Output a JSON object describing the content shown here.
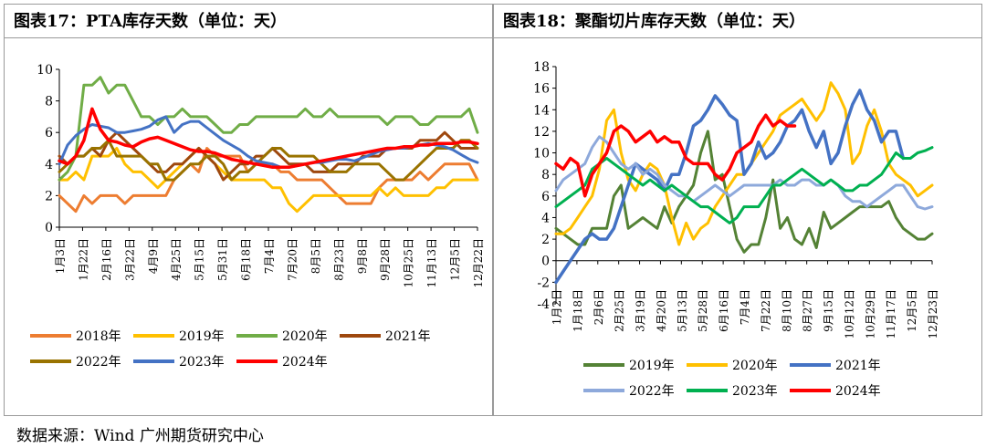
{
  "source": "数据来源：Wind 广州期货研究中心",
  "chart_data": [
    {
      "type": "line",
      "title": "图表17：PTA库存天数（单位：天）",
      "ylim": [
        0,
        10
      ],
      "yticks": [
        "0",
        "2",
        "4",
        "6",
        "8",
        "10"
      ],
      "xticks": [
        "1月3日",
        "1月22日",
        "2月16日",
        "3月22日",
        "4月9日",
        "4月25日",
        "5月15日",
        "5月31日",
        "6月18日",
        "7月4日",
        "7月20日",
        "8月5日",
        "8月23日",
        "9月8日",
        "9月28日",
        "10月25日",
        "11月13日",
        "12月5日",
        "12月22日"
      ],
      "n": 52,
      "legend_position": "bottom",
      "grid": false,
      "series": [
        {
          "name": "2018年",
          "color": "#ED7D31",
          "width": 3,
          "values": [
            2,
            1.5,
            1,
            2,
            1.5,
            2,
            2,
            2,
            1.5,
            2,
            2,
            2,
            2,
            2,
            3,
            3.5,
            4,
            3.5,
            5,
            4.5,
            4.5,
            4.5,
            4.5,
            3.5,
            4,
            4,
            4,
            3.5,
            3.5,
            3,
            3,
            3,
            3,
            2.5,
            2,
            1.5,
            1.5,
            1.5,
            1.5,
            2.5,
            3,
            3,
            3,
            3,
            3.5,
            3,
            3.5,
            4,
            4,
            4,
            4,
            3
          ]
        },
        {
          "name": "2019年",
          "color": "#FFC000",
          "width": 3,
          "values": [
            3,
            3,
            3.5,
            3,
            4.5,
            4.5,
            4.5,
            5,
            4,
            3.5,
            3.5,
            3,
            2.5,
            3,
            3.5,
            4,
            4.5,
            5,
            4.5,
            4,
            3.5,
            3,
            3,
            3,
            3,
            3,
            2.5,
            2.5,
            1.5,
            1,
            1.5,
            2,
            2,
            2,
            2,
            2,
            2,
            2,
            2,
            2.5,
            2,
            2.5,
            2,
            2,
            2,
            2,
            2.5,
            2.5,
            3,
            3,
            3,
            3
          ]
        },
        {
          "name": "2020年",
          "color": "#70AD47",
          "width": 3,
          "values": [
            3,
            3.5,
            4.5,
            9,
            9,
            9.5,
            8.5,
            9,
            9,
            8,
            7,
            7,
            6.5,
            7,
            7,
            7.5,
            7,
            7,
            7,
            6.5,
            6,
            6,
            6.5,
            6.5,
            7,
            7,
            7,
            7,
            7,
            7,
            7.5,
            7,
            7,
            7.5,
            7,
            7,
            7,
            7,
            7,
            7,
            6.5,
            7,
            7,
            7,
            6.5,
            6.5,
            7,
            7,
            7,
            7,
            7.5,
            6
          ]
        },
        {
          "name": "2021年",
          "color": "#9E480E",
          "width": 3,
          "values": [
            4.5,
            4,
            4.5,
            4.5,
            5,
            4.5,
            5.5,
            6,
            5.5,
            5,
            4.5,
            4,
            3.5,
            3.5,
            4,
            4,
            4.5,
            5,
            4.5,
            4,
            3,
            3.5,
            4,
            4,
            4.5,
            4.5,
            5,
            4.5,
            4,
            4,
            4,
            3.5,
            3.5,
            3.5,
            4,
            4,
            4,
            4.5,
            4.5,
            4.5,
            5,
            5,
            5,
            5,
            5.5,
            5.5,
            5.5,
            6,
            5.5,
            5,
            5,
            5
          ]
        },
        {
          "name": "2022年",
          "color": "#997300",
          "width": 3,
          "values": [
            3.5,
            4,
            4.5,
            4.5,
            5,
            5,
            5.5,
            4.5,
            4.5,
            4.5,
            4.5,
            4,
            4,
            3,
            3,
            3.5,
            4,
            4,
            4.5,
            4.5,
            4,
            3,
            3.5,
            3.5,
            4,
            4.5,
            5,
            5,
            4.5,
            4.5,
            4.5,
            4.5,
            4,
            3.5,
            3.5,
            3.5,
            4,
            4,
            4,
            4,
            3.5,
            3,
            3,
            3.5,
            4,
            4.5,
            5,
            5,
            5,
            5.5,
            5.5,
            5
          ]
        },
        {
          "name": "2023年",
          "color": "#4472C4",
          "width": 3,
          "values": [
            4,
            5.2,
            5.8,
            6.2,
            6.5,
            6.4,
            6.3,
            6,
            6,
            6.1,
            6.2,
            6.4,
            6.8,
            7,
            6,
            6.5,
            6.7,
            6.7,
            6.3,
            5.9,
            5.5,
            5.2,
            4.9,
            4.5,
            4.2,
            4.1,
            4,
            3.8,
            3.8,
            3.9,
            4,
            4.1,
            4.1,
            4.2,
            4.3,
            4.3,
            4.2,
            4.4,
            4.6,
            4.8,
            4.9,
            5,
            5,
            5.1,
            5.2,
            5.3,
            5.2,
            5.1,
            4.9,
            4.6,
            4.3,
            4.1
          ]
        },
        {
          "name": "2024年",
          "color": "#FF0000",
          "width": 3.5,
          "values": [
            4.2,
            4,
            4.5,
            5.5,
            7.5,
            6.2,
            5.5,
            5.4,
            5.2,
            5.1,
            5.4,
            5.6,
            5.7,
            5.5,
            5.3,
            5.1,
            4.9,
            4.8,
            4.8,
            4.7,
            4.5,
            4.3,
            4.2,
            4.1,
            4,
            3.9,
            3.8,
            3.8,
            3.8,
            3.9,
            4,
            4.1,
            4.2,
            4.3,
            4.4,
            4.5,
            4.6,
            4.7,
            4.8,
            4.9,
            5,
            5,
            5.1,
            5.1,
            5.2,
            5.2,
            5.3,
            5.3,
            5.3,
            5.4,
            5.4,
            5.3
          ]
        }
      ]
    },
    {
      "type": "line",
      "title": "图表18：聚酯切片库存天数（单位：天）",
      "ylim": [
        -4,
        18
      ],
      "yticks": [
        "-4",
        "-2",
        "0",
        "2",
        "4",
        "6",
        "8",
        "10",
        "12",
        "14",
        "16",
        "18"
      ],
      "xticks": [
        "1月2日",
        "1月18日",
        "2月6日",
        "2月25日",
        "3月19日",
        "4月20日",
        "5月13日",
        "5月28日",
        "6月16日",
        "7月4日",
        "7月22日",
        "8月10日",
        "8月27日",
        "9月15日",
        "10月12日",
        "10月29日",
        "11月17日",
        "12月5日",
        "12月23日"
      ],
      "n": 53,
      "legend_position": "bottom",
      "grid": false,
      "series": [
        {
          "name": "2019年",
          "color": "#548235",
          "width": 3,
          "values": [
            3,
            2.5,
            2,
            1.5,
            1.5,
            3,
            3,
            3,
            6,
            7,
            3,
            3.5,
            4,
            3.5,
            3,
            5,
            3.5,
            5,
            6,
            7,
            10,
            12,
            7.5,
            8,
            5,
            2,
            0.8,
            1.5,
            1.5,
            4,
            7.5,
            3,
            4,
            2,
            1.5,
            3,
            1.2,
            4.5,
            3,
            3.5,
            4,
            4.5,
            5,
            5,
            5,
            5,
            5.5,
            4,
            3,
            2.5,
            2,
            2,
            2.5
          ]
        },
        {
          "name": "2020年",
          "color": "#FFC000",
          "width": 3,
          "values": [
            2.5,
            2.5,
            3,
            4,
            5,
            6,
            8.5,
            13,
            14,
            10,
            7.5,
            6.5,
            8,
            9,
            8.5,
            7,
            4,
            1.5,
            3.5,
            2,
            3,
            3.5,
            5,
            6,
            7,
            8,
            8,
            9,
            10,
            11,
            12,
            13.5,
            14,
            14.5,
            15,
            14,
            13,
            14,
            16.5,
            15.5,
            14,
            9,
            10,
            12.5,
            14,
            12,
            9,
            8,
            7.5,
            7,
            6,
            6.5,
            7
          ]
        },
        {
          "name": "2021年",
          "color": "#4472C4",
          "width": 3.5,
          "values": [
            -2,
            -1,
            0,
            1,
            2,
            2.5,
            2,
            2,
            3,
            5,
            7,
            9,
            8.5,
            8,
            7.5,
            6.5,
            8,
            8,
            10,
            12.5,
            13,
            14,
            15.3,
            14.5,
            13.5,
            13,
            8,
            9,
            11,
            9.5,
            10,
            11,
            12.5,
            13,
            14,
            12,
            10.5,
            12,
            9,
            10,
            12.5,
            14.5,
            15.8,
            14,
            13,
            11,
            12,
            12,
            9.5,
            null,
            null,
            null,
            null
          ]
        },
        {
          "name": "2022年",
          "color": "#8EA9DB",
          "width": 3,
          "values": [
            6.5,
            7.5,
            8,
            8.5,
            9,
            10.5,
            11.5,
            11,
            10,
            9,
            8.5,
            9,
            8,
            8.5,
            8,
            7,
            6.5,
            6,
            6,
            5.5,
            6,
            6.5,
            7,
            6.5,
            6,
            6.5,
            7,
            7,
            7,
            7,
            7,
            7.5,
            7,
            7,
            7.5,
            7.5,
            7,
            7,
            7.5,
            7,
            6,
            5.5,
            5.5,
            5,
            5.5,
            6,
            6.5,
            7,
            7,
            6,
            5,
            4.8,
            5
          ]
        },
        {
          "name": "2023年",
          "color": "#00B050",
          "width": 3,
          "values": [
            5,
            5.5,
            6,
            6.5,
            7,
            8.5,
            9,
            9.5,
            9,
            8.5,
            8,
            7.5,
            7,
            7.5,
            7,
            6.5,
            7,
            6.5,
            6,
            5.5,
            5,
            5,
            4.5,
            4,
            3.5,
            4,
            5,
            5,
            5,
            6,
            7,
            7,
            7.5,
            8,
            8.5,
            8,
            7.5,
            7,
            7.5,
            7,
            6.5,
            6.5,
            7,
            7,
            7.5,
            8,
            9,
            10,
            9.5,
            9.5,
            10,
            10.2,
            10.5
          ]
        },
        {
          "name": "2024年",
          "color": "#FF0000",
          "width": 3.5,
          "values": [
            9,
            8.5,
            9.5,
            9,
            6,
            8,
            9,
            10,
            12,
            12.5,
            12,
            11,
            11.5,
            12,
            11,
            11.5,
            11,
            11,
            9.5,
            9,
            9,
            9,
            8,
            7.5,
            8.5,
            10,
            10.5,
            11,
            12.5,
            13.5,
            12.5,
            13,
            12.5,
            12.5,
            null,
            null,
            null,
            null,
            null,
            null,
            null,
            null,
            null,
            null,
            null,
            null,
            null,
            null,
            null,
            null,
            null,
            null,
            null
          ]
        }
      ]
    }
  ]
}
